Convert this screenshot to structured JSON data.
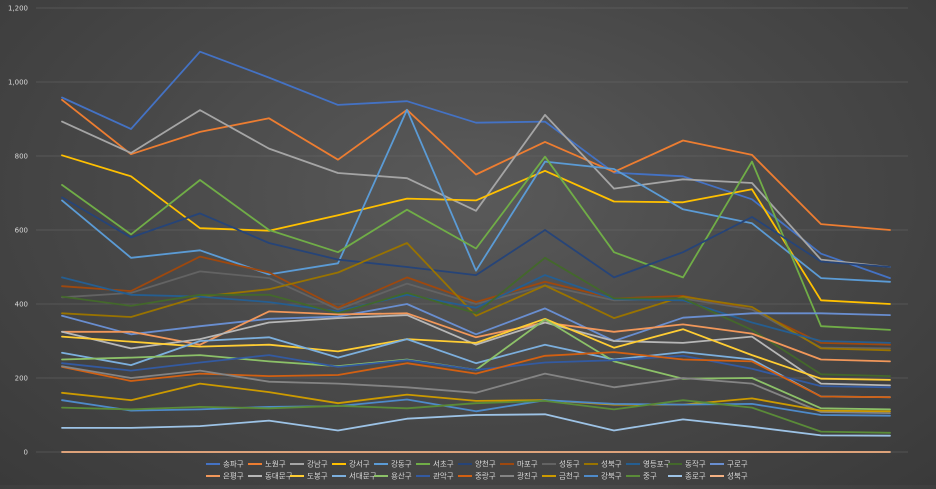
{
  "chart_data": {
    "type": "line",
    "title": "",
    "xlabel": "",
    "ylabel": "",
    "ylim": [
      0,
      1200
    ],
    "yticks": [
      0,
      200,
      400,
      600,
      800,
      1000,
      1200
    ],
    "ytick_labels": [
      "0",
      "200",
      "400",
      "600",
      "800",
      "1,000",
      "1,200"
    ],
    "grid": true,
    "legend_position": "bottom",
    "x": [
      1,
      2,
      3,
      4,
      5,
      6,
      7,
      8,
      9,
      10,
      11,
      12,
      13
    ],
    "series": [
      {
        "name": "송파구",
        "color": "#4472c4",
        "values": [
          958,
          873,
          1082,
          1012,
          938,
          948,
          890,
          893,
          755,
          745,
          683,
          536,
          470
        ]
      },
      {
        "name": "노원구",
        "color": "#ed7d31",
        "values": [
          952,
          805,
          865,
          902,
          790,
          925,
          750,
          838,
          757,
          842,
          803,
          616,
          600
        ]
      },
      {
        "name": "강남구",
        "color": "#a5a5a5",
        "values": [
          893,
          808,
          924,
          820,
          754,
          740,
          652,
          911,
          712,
          737,
          727,
          520,
          500
        ]
      },
      {
        "name": "강서구",
        "color": "#ffc000",
        "values": [
          802,
          745,
          605,
          598,
          640,
          685,
          680,
          760,
          677,
          675,
          710,
          410,
          400
        ]
      },
      {
        "name": "강동구",
        "color": "#5b9bd5",
        "values": [
          680,
          525,
          545,
          480,
          510,
          925,
          490,
          785,
          765,
          656,
          618,
          470,
          460
        ]
      },
      {
        "name": "서초구",
        "color": "#70ad47",
        "values": [
          722,
          588,
          735,
          600,
          540,
          655,
          550,
          798,
          540,
          472,
          785,
          340,
          330
        ]
      },
      {
        "name": "양천구",
        "color": "#264478",
        "values": [
          688,
          580,
          645,
          565,
          520,
          500,
          478,
          600,
          472,
          540,
          635,
          515,
          500
        ]
      },
      {
        "name": "마포구",
        "color": "#9e480e",
        "values": [
          448,
          435,
          528,
          485,
          390,
          472,
          405,
          460,
          415,
          422,
          385,
          295,
          290
        ]
      },
      {
        "name": "성동구",
        "color": "#636363",
        "values": [
          418,
          430,
          488,
          470,
          385,
          455,
          400,
          450,
          410,
          415,
          385,
          282,
          280
        ]
      },
      {
        "name": "성북구",
        "color": "#997300",
        "values": [
          375,
          365,
          420,
          440,
          485,
          565,
          368,
          450,
          362,
          420,
          392,
          280,
          275
        ]
      },
      {
        "name": "영등포구",
        "color": "#255e91",
        "values": [
          472,
          425,
          420,
          405,
          380,
          425,
          390,
          478,
          413,
          410,
          350,
          300,
          295
        ]
      },
      {
        "name": "동작구",
        "color": "#43682b",
        "values": [
          420,
          395,
          425,
          425,
          375,
          430,
          375,
          525,
          415,
          415,
          330,
          210,
          205
        ]
      },
      {
        "name": "구로구",
        "color": "#698ed0",
        "values": [
          368,
          318,
          340,
          360,
          366,
          400,
          318,
          388,
          300,
          363,
          375,
          375,
          370
        ]
      },
      {
        "name": "은평구",
        "color": "#f1975a",
        "values": [
          325,
          325,
          290,
          380,
          372,
          375,
          310,
          350,
          325,
          345,
          320,
          250,
          245
        ]
      },
      {
        "name": "동대문구",
        "color": "#b7b7b7",
        "values": [
          325,
          280,
          305,
          350,
          362,
          370,
          290,
          350,
          300,
          295,
          312,
          185,
          180
        ]
      },
      {
        "name": "도봉구",
        "color": "#ffcd33",
        "values": [
          312,
          298,
          285,
          290,
          272,
          305,
          295,
          360,
          282,
          332,
          262,
          198,
          195
        ]
      },
      {
        "name": "서대문구",
        "color": "#7cafdd",
        "values": [
          268,
          235,
          300,
          310,
          255,
          305,
          240,
          290,
          250,
          270,
          250,
          150,
          148
        ]
      },
      {
        "name": "용산구",
        "color": "#8cc168",
        "values": [
          250,
          255,
          262,
          245,
          232,
          250,
          222,
          358,
          245,
          198,
          200,
          118,
          115
        ]
      },
      {
        "name": "관악구",
        "color": "#335aa1",
        "values": [
          240,
          220,
          242,
          262,
          230,
          248,
          222,
          242,
          248,
          260,
          225,
          178,
          175
        ]
      },
      {
        "name": "중랑구",
        "color": "#d26012",
        "values": [
          230,
          192,
          212,
          205,
          208,
          240,
          212,
          260,
          270,
          250,
          245,
          150,
          148
        ]
      },
      {
        "name": "광진구",
        "color": "#848484",
        "values": [
          232,
          200,
          220,
          190,
          185,
          175,
          160,
          212,
          175,
          200,
          185,
          108,
          105
        ]
      },
      {
        "name": "금천구",
        "color": "#cc9a00",
        "values": [
          160,
          140,
          185,
          162,
          132,
          155,
          138,
          140,
          128,
          128,
          145,
          112,
          110
        ]
      },
      {
        "name": "강북구",
        "color": "#4e8ac9",
        "values": [
          140,
          112,
          115,
          122,
          124,
          142,
          110,
          140,
          130,
          128,
          130,
          100,
          98
        ]
      },
      {
        "name": "중구",
        "color": "#5a8b38",
        "values": [
          120,
          115,
          122,
          118,
          125,
          118,
          132,
          138,
          115,
          140,
          120,
          55,
          52
        ]
      },
      {
        "name": "종로구",
        "color": "#9dc3e6",
        "values": [
          65,
          65,
          70,
          85,
          58,
          90,
          100,
          102,
          58,
          88,
          68,
          45,
          44
        ]
      },
      {
        "name": "성북구",
        "color": "#f4b183",
        "values": [
          0,
          0,
          0,
          0,
          0,
          0,
          0,
          0,
          0,
          0,
          0,
          0,
          0
        ]
      }
    ]
  }
}
